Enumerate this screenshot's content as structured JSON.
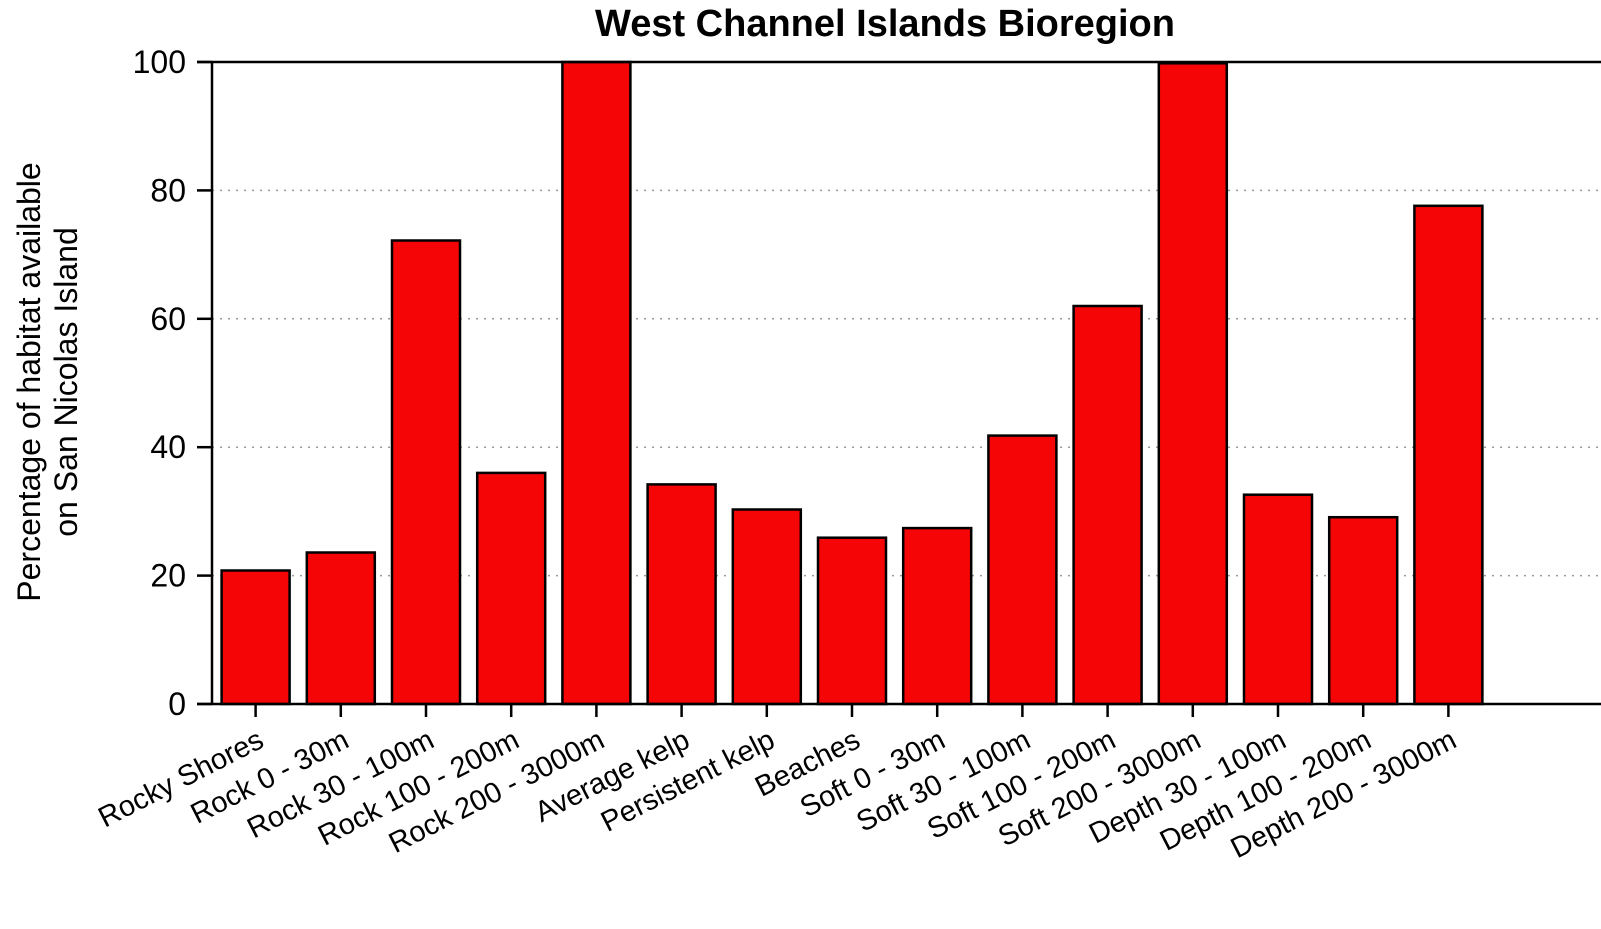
{
  "chart_data": {
    "type": "bar",
    "title": "West Channel Islands Bioregion",
    "ylabel_lines": [
      "Percentage of habitat available",
      "on San Nicolas Island"
    ],
    "xlabel": "",
    "ylim": [
      0,
      100
    ],
    "yticks": [
      0,
      20,
      40,
      60,
      80,
      100
    ],
    "grid": "horizontal-dotted",
    "bar_color": "#f50505",
    "categories": [
      "Rocky Shores",
      "Rock 0 - 30m",
      "Rock 30 - 100m",
      "Rock 100 - 200m",
      "Rock 200 - 3000m",
      "Average kelp",
      "Persistent kelp",
      "Beaches",
      "Soft 0 - 30m",
      "Soft 30 - 100m",
      "Soft 100 - 200m",
      "Soft 200 - 3000m",
      "Depth 30 - 100m",
      "Depth 100 - 200m",
      "Depth 200 - 3000m"
    ],
    "values": [
      20.8,
      23.6,
      72.2,
      36.0,
      100,
      34.2,
      30.3,
      25.9,
      27.4,
      41.8,
      62.0,
      99.8,
      32.6,
      29.1,
      77.6
    ]
  }
}
